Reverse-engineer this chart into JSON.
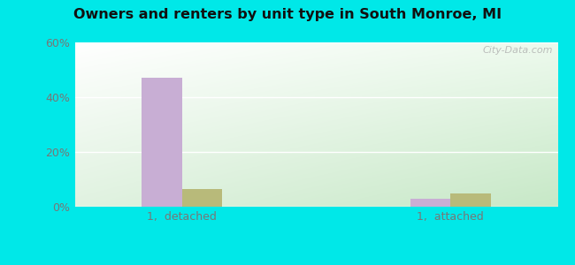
{
  "title": "Owners and renters by unit type in South Monroe, MI",
  "categories": [
    "1,  detached",
    "1,  attached"
  ],
  "owner_values": [
    47.0,
    3.0
  ],
  "renter_values": [
    6.5,
    5.0
  ],
  "owner_color": "#c8aed4",
  "renter_color": "#b8ba7a",
  "ylim": [
    0,
    60
  ],
  "yticks": [
    0,
    20,
    40,
    60
  ],
  "yticklabels": [
    "0%",
    "20%",
    "40%",
    "60%"
  ],
  "bar_width": 0.3,
  "group_positions": [
    1.0,
    3.0
  ],
  "outer_bg": "#00e8e8",
  "watermark": "City-Data.com"
}
